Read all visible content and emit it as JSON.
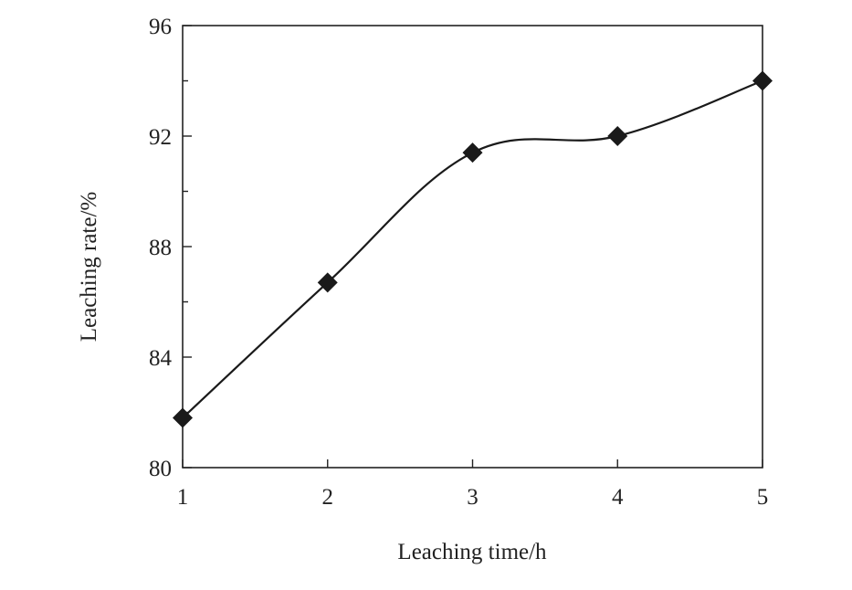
{
  "chart_data": {
    "type": "line",
    "title": "",
    "xlabel": "Leaching time/h",
    "ylabel": "Leaching rate/%",
    "x": [
      1,
      2,
      3,
      4,
      5
    ],
    "series": [
      {
        "values": [
          81.8,
          86.7,
          91.4,
          92.0,
          94.0
        ],
        "marker": "diamond",
        "color": "#1a1a1a"
      }
    ],
    "xlim": [
      1,
      5
    ],
    "ylim": [
      80,
      96
    ],
    "xticks": [
      1,
      2,
      3,
      4,
      5
    ],
    "xtick_labels": [
      "1",
      "2",
      "3",
      "4",
      "5"
    ],
    "yticks_major": [
      80,
      84,
      88,
      92,
      96
    ],
    "ytick_labels": [
      "80",
      "84",
      "88",
      "92",
      "96"
    ],
    "yticks_minor": [
      82,
      86,
      90,
      94
    ],
    "grid": false,
    "legend": "none"
  }
}
